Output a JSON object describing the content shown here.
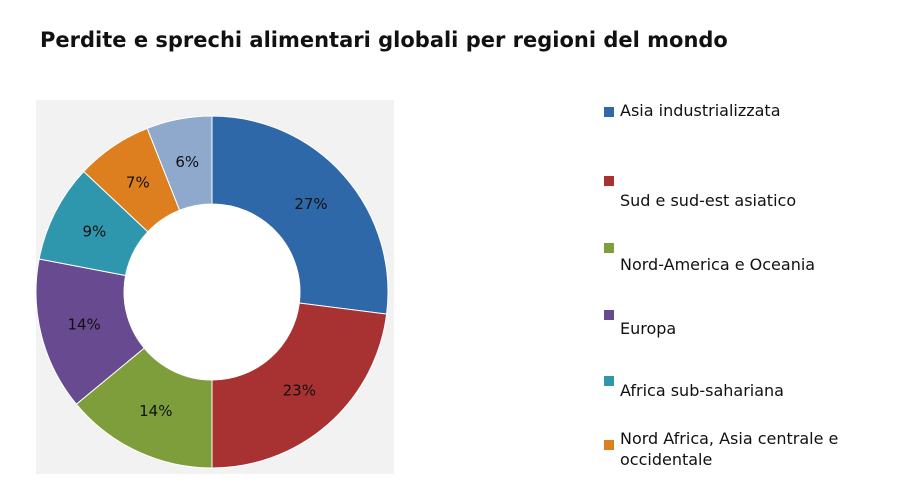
{
  "chart_data": {
    "type": "pie",
    "title": "Perdite e sprechi alimentari globali per regioni del mondo",
    "donut": true,
    "legend_position": "right",
    "slices": [
      {
        "label": "Asia industrializzata",
        "value": 27,
        "display": "27%",
        "color": "#2e68a8"
      },
      {
        "label": "Sud e sud-est  asiatico",
        "value": 23,
        "display": "23%",
        "color": "#a83131"
      },
      {
        "label": "Nord-America  e Oceania",
        "value": 14,
        "display": "14%",
        "color": "#7d9e3a"
      },
      {
        "label": "Europa",
        "value": 14,
        "display": "14%",
        "color": "#674a8f"
      },
      {
        "label": "Africa sub-sahariana",
        "value": 9,
        "display": "9%",
        "color": "#2f97ad"
      },
      {
        "label": "Nord Africa, Asia centrale e occidentale",
        "value": 7,
        "display": "7%",
        "color": "#dd7f1f"
      },
      {
        "label": "",
        "value": 6,
        "display": "6%",
        "color": "#8ea9cc"
      }
    ]
  }
}
